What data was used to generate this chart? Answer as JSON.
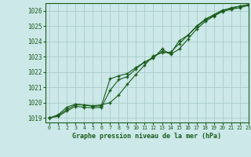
{
  "title": "Graphe pression niveau de la mer (hPa)",
  "bg_color": "#cce8e8",
  "line_color": "#1a5c1a",
  "grid_color": "#aacccc",
  "text_color": "#1a5c1a",
  "xlim": [
    -0.5,
    23
  ],
  "ylim": [
    1018.7,
    1026.5
  ],
  "yticks": [
    1019,
    1020,
    1021,
    1022,
    1023,
    1024,
    1025,
    1026
  ],
  "xticks": [
    0,
    1,
    2,
    3,
    4,
    5,
    6,
    7,
    8,
    9,
    10,
    11,
    12,
    13,
    14,
    15,
    16,
    17,
    18,
    19,
    20,
    21,
    22,
    23
  ],
  "series": [
    [
      1019.0,
      1019.2,
      1019.7,
      1019.9,
      1019.85,
      1019.8,
      1019.85,
      1020.0,
      1020.5,
      1021.2,
      1021.85,
      1022.45,
      1023.05,
      1023.25,
      1023.3,
      1023.85,
      1024.4,
      1024.95,
      1025.4,
      1025.7,
      1026.0,
      1026.2,
      1026.3,
      1026.4
    ],
    [
      1019.0,
      1019.15,
      1019.55,
      1019.85,
      1019.85,
      1019.75,
      1019.8,
      1021.55,
      1021.75,
      1021.9,
      1022.3,
      1022.65,
      1022.95,
      1023.35,
      1023.2,
      1024.05,
      1024.4,
      1025.0,
      1025.45,
      1025.75,
      1026.05,
      1026.15,
      1026.3,
      1026.4
    ],
    [
      1019.0,
      1019.1,
      1019.45,
      1019.75,
      1019.7,
      1019.65,
      1019.7,
      1020.8,
      1021.5,
      1021.7,
      1022.2,
      1022.65,
      1022.9,
      1023.5,
      1023.15,
      1023.5,
      1024.15,
      1024.8,
      1025.3,
      1025.65,
      1025.95,
      1026.1,
      1026.2,
      1026.35
    ]
  ]
}
